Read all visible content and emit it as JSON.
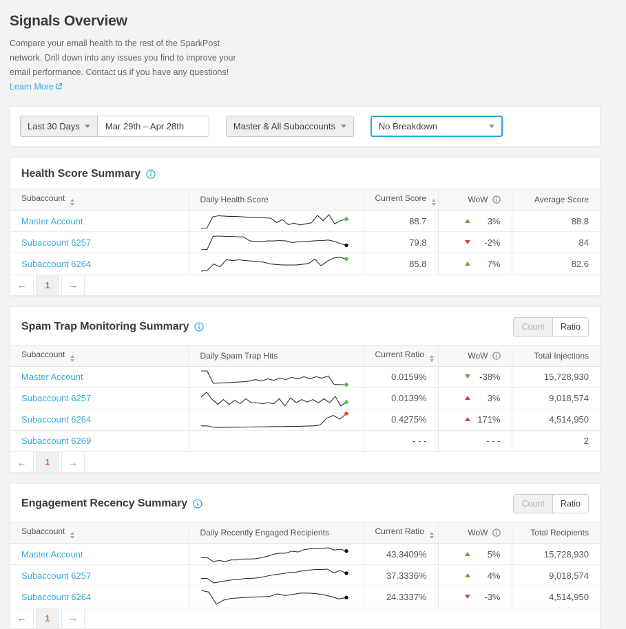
{
  "header": {
    "title": "Signals Overview",
    "description": "Compare your email health to the rest of the SparkPost network. Drill down into any issues you find to improve your email performance. Contact us if you have any questions!",
    "learn_more_label": "Learn More"
  },
  "filters": {
    "preset": "Last 30 Days",
    "date_range": "Mar 29th – Apr 28th",
    "accounts": "Master & All Subaccounts",
    "breakdown": "No Breakdown"
  },
  "toggle": {
    "count": "Count",
    "ratio": "Ratio"
  },
  "pagination": {
    "prev": "←",
    "page": "1",
    "next": "→"
  },
  "colors": {
    "accent_blue": "#38aadc",
    "green": "#64a73d",
    "red": "#d4404b",
    "orange": "#fa6423",
    "dot_green": "#4fc33f",
    "dot_red": "#e8442f",
    "dot_black": "#141414"
  },
  "cards": [
    {
      "title": "Health Score Summary",
      "columns": [
        "Subaccount",
        "Daily Health Score",
        "Current Score",
        "WoW",
        "Average Score"
      ],
      "rows": [
        {
          "account": "Master Account",
          "value": "88.7",
          "wow": "3%",
          "wow_dir": "up",
          "wow_color": "green",
          "total": "88.8",
          "dot": "green",
          "spark": [
            86,
            86.1,
            89.3,
            89.6,
            89.5,
            89.4,
            89.4,
            89.3,
            89.2,
            89.2,
            89.1,
            89.0,
            88.9,
            87.7,
            88.5,
            87.1,
            87.5,
            87.0,
            87.3,
            87.6,
            89.7,
            88.2,
            89.9,
            87.3,
            88.2,
            88.7
          ]
        },
        {
          "account": "Subaccount 6257",
          "value": "79.8",
          "wow": "-2%",
          "wow_dir": "down",
          "wow_color": "red",
          "total": "84",
          "dot": "black",
          "spark": [
            77.8,
            78,
            83.9,
            84,
            83.8,
            83.8,
            83.7,
            83.6,
            81.9,
            81.5,
            81.5,
            81.8,
            81.8,
            82.0,
            81.8,
            81.1,
            81.4,
            81.4,
            81.7,
            81.9,
            82.0,
            82.2,
            81.6,
            80.6,
            79.8
          ]
        },
        {
          "account": "Subaccount 6264",
          "value": "85.8",
          "wow": "7%",
          "wow_dir": "up",
          "wow_color": "green",
          "total": "82.6",
          "dot": "green",
          "spark": [
            78.8,
            79.3,
            82.9,
            81.3,
            85.4,
            84.9,
            85.3,
            84.9,
            84.6,
            84.3,
            83.9,
            82.9,
            82.6,
            82.3,
            82.3,
            82.3,
            82.7,
            83.1,
            85.7,
            81.9,
            84.6,
            86.4,
            86.7,
            85.8
          ]
        }
      ]
    },
    {
      "title": "Spam Trap Monitoring Summary",
      "columns": [
        "Subaccount",
        "Daily Spam Trap Hits",
        "Current Ratio",
        "WoW",
        "Total Injections"
      ],
      "rows": [
        {
          "account": "Master Account",
          "value": "0.0159%",
          "wow": "-38%",
          "wow_dir": "down",
          "wow_color": "green",
          "total": "15,728,930",
          "dot": "green",
          "spark": [
            0.035,
            0.0348,
            0.018,
            0.0182,
            0.0185,
            0.019,
            0.0195,
            0.02,
            0.021,
            0.023,
            0.021,
            0.024,
            0.022,
            0.025,
            0.023,
            0.026,
            0.024,
            0.027,
            0.024,
            0.027,
            0.025,
            0.028,
            0.0162,
            0.016,
            0.0159
          ]
        },
        {
          "account": "Subaccount 6257",
          "value": "0.0139%",
          "wow": "3%",
          "wow_dir": "up",
          "wow_color": "red",
          "total": "9,018,574",
          "dot": "green",
          "spark": [
            0.02,
            0.026,
            0.017,
            0.011,
            0.017,
            0.011,
            0.016,
            0.012,
            0.018,
            0.013,
            0.013,
            0.012,
            0.013,
            0.012,
            0.018,
            0.009,
            0.019,
            0.013,
            0.017,
            0.014,
            0.017,
            0.013,
            0.018,
            0.013,
            0.021,
            0.009,
            0.0139
          ]
        },
        {
          "account": "Subaccount 6264",
          "value": "0.4275%",
          "wow": "171%",
          "wow_dir": "up",
          "wow_color": "red",
          "total": "4,514,950",
          "dot": "red",
          "spark": [
            0.1,
            0.099,
            0.06,
            0.061,
            0.062,
            0.065,
            0.066,
            0.07,
            0.071,
            0.072,
            0.076,
            0.08,
            0.081,
            0.085,
            0.086,
            0.09,
            0.095,
            0.1,
            0.12,
            0.3,
            0.38,
            0.28,
            0.4275
          ]
        },
        {
          "account": "Subaccount 6269",
          "value": "- - -",
          "wow": "- - -",
          "wow_dir": null,
          "wow_color": null,
          "total": "2",
          "dot": null,
          "spark": null
        }
      ]
    },
    {
      "title": "Engagement Recency Summary",
      "columns": [
        "Subaccount",
        "Daily Recently Engaged Recipients",
        "Current Ratio",
        "WoW",
        "Total Recipients"
      ],
      "rows": [
        {
          "account": "Master Account",
          "value": "43.3409%",
          "wow": "5%",
          "wow_dir": "up",
          "wow_color": "green",
          "total": "15,728,930",
          "dot": "black",
          "spark": [
            41.0,
            41.0,
            39.6,
            40.0,
            39.6,
            40.2,
            40.2,
            40.5,
            40.5,
            40.6,
            41.0,
            41.5,
            42.2,
            42.6,
            42.6,
            43.3,
            43.0,
            43.8,
            44.2,
            44.2,
            44.3,
            44.5,
            43.7,
            44.0,
            43.34
          ]
        },
        {
          "account": "Subaccount 6257",
          "value": "37.3336%",
          "wow": "4%",
          "wow_dir": "up",
          "wow_color": "green",
          "total": "9,018,574",
          "dot": "black",
          "spark": [
            35.0,
            35.0,
            33.0,
            33.5,
            34.0,
            34.4,
            34.5,
            35.0,
            35.0,
            35.3,
            35.8,
            36.4,
            36.8,
            37.2,
            37.8,
            37.8,
            38.4,
            38.7,
            39.0,
            39.0,
            39.2,
            37.5,
            38.6,
            37.33
          ]
        },
        {
          "account": "Subaccount 6264",
          "value": "24.3337%",
          "wow": "-3%",
          "wow_dir": "down",
          "wow_color": "red",
          "total": "4,514,950",
          "dot": "black",
          "spark": [
            27.0,
            26.4,
            21.8,
            23.4,
            24.0,
            24.2,
            24.4,
            24.5,
            24.6,
            24.8,
            25.7,
            25.1,
            25.5,
            26.0,
            26.0,
            25.8,
            25.4,
            24.7,
            23.8,
            24.33
          ]
        }
      ]
    }
  ]
}
